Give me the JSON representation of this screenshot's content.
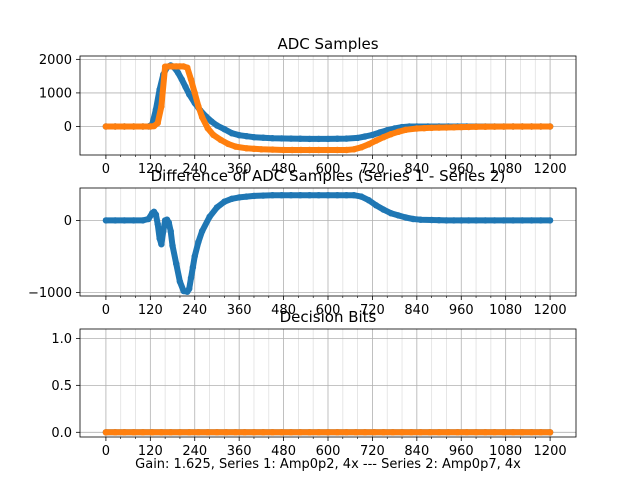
{
  "figure": {
    "xlabel": "Gain: 1.625, Series 1: Amp0p2, 4x --- Series 2: Amp0p7, 4x",
    "colors": {
      "series1": "#1f77b4",
      "series2": "#ff7f0e",
      "grid": "#b0b0b0",
      "axis": "#000000"
    }
  },
  "chart_data": [
    {
      "type": "scatter",
      "title": "ADC Samples",
      "xlim": [
        -70,
        1270
      ],
      "ylim": [
        -850,
        2100
      ],
      "x_ticks": [
        0,
        120,
        240,
        360,
        480,
        600,
        720,
        840,
        960,
        1080,
        1200
      ],
      "x_minor_step": 40,
      "y_ticks": [
        0,
        1000,
        2000
      ],
      "y_tick_labels": [
        "0",
        "1000",
        "2000"
      ],
      "grid": true,
      "series": [
        {
          "color": "#1f77b4",
          "x": [
            0,
            100,
            115,
            125,
            135,
            145,
            155,
            165,
            175,
            185,
            195,
            205,
            215,
            225,
            240,
            255,
            270,
            285,
            300,
            320,
            340,
            360,
            400,
            450,
            500,
            550,
            600,
            650,
            680,
            700,
            720,
            740,
            760,
            780,
            800,
            820,
            840,
            900,
            1000,
            1100,
            1200
          ],
          "y": [
            0,
            0,
            0,
            60,
            500,
            1100,
            1550,
            1760,
            1820,
            1750,
            1600,
            1400,
            1180,
            960,
            700,
            480,
            300,
            150,
            30,
            -80,
            -200,
            -260,
            -320,
            -350,
            -360,
            -370,
            -370,
            -360,
            -340,
            -300,
            -250,
            -180,
            -110,
            -60,
            -20,
            0,
            0,
            0,
            0,
            0,
            0
          ]
        },
        {
          "color": "#ff7f0e",
          "x": [
            0,
            100,
            120,
            130,
            140,
            150,
            160,
            170,
            180,
            190,
            200,
            210,
            220,
            230,
            240,
            250,
            260,
            275,
            290,
            310,
            330,
            350,
            380,
            420,
            480,
            550,
            600,
            650,
            670,
            690,
            710,
            730,
            750,
            770,
            790,
            810,
            840,
            880,
            920,
            960,
            1000,
            1100,
            1200
          ],
          "y": [
            0,
            0,
            0,
            10,
            100,
            600,
            1780,
            1790,
            1790,
            1790,
            1790,
            1790,
            1750,
            1400,
            1000,
            600,
            280,
            -50,
            -250,
            -400,
            -520,
            -600,
            -650,
            -680,
            -700,
            -700,
            -700,
            -700,
            -680,
            -620,
            -530,
            -420,
            -320,
            -230,
            -160,
            -100,
            -60,
            -40,
            -30,
            -20,
            -10,
            0,
            0
          ]
        }
      ]
    },
    {
      "type": "scatter",
      "title": "Difference of ADC Samples (Series 1 - Series 2)",
      "xlim": [
        -70,
        1270
      ],
      "ylim": [
        -1050,
        450
      ],
      "x_ticks": [
        0,
        120,
        240,
        360,
        480,
        600,
        720,
        840,
        960,
        1080,
        1200
      ],
      "x_minor_step": 40,
      "y_ticks": [
        -1000,
        0
      ],
      "y_tick_labels": [
        "−1000",
        "0"
      ],
      "grid": true,
      "series": [
        {
          "color": "#1f77b4",
          "x": [
            0,
            100,
            115,
            125,
            130,
            135,
            140,
            145,
            150,
            155,
            160,
            165,
            170,
            175,
            180,
            190,
            200,
            210,
            220,
            225,
            230,
            235,
            240,
            250,
            260,
            280,
            300,
            320,
            340,
            360,
            400,
            450,
            500,
            550,
            600,
            650,
            670,
            690,
            710,
            730,
            750,
            770,
            790,
            810,
            830,
            850,
            880,
            920,
            960,
            1000,
            1100,
            1200
          ],
          "y": [
            0,
            0,
            20,
            100,
            120,
            80,
            -50,
            -250,
            -330,
            -150,
            0,
            10,
            -30,
            -150,
            -350,
            -600,
            -850,
            -980,
            -990,
            -950,
            -800,
            -650,
            -500,
            -300,
            -150,
            50,
            180,
            260,
            300,
            320,
            340,
            350,
            350,
            350,
            350,
            350,
            350,
            330,
            280,
            210,
            150,
            100,
            70,
            40,
            20,
            10,
            5,
            0,
            0,
            0,
            0,
            0
          ]
        }
      ]
    },
    {
      "type": "scatter",
      "title": "Decision Bits",
      "xlim": [
        -70,
        1270
      ],
      "ylim": [
        -0.05,
        1.1
      ],
      "x_ticks": [
        0,
        120,
        240,
        360,
        480,
        600,
        720,
        840,
        960,
        1080,
        1200
      ],
      "x_minor_step": 40,
      "y_ticks": [
        0,
        0.5,
        1.0
      ],
      "y_tick_labels": [
        "0.0",
        "0.5",
        "1.0"
      ],
      "grid": true,
      "series": [
        {
          "color": "#1f77b4",
          "x": [
            0,
            1200
          ],
          "y": [
            0,
            0
          ]
        },
        {
          "color": "#ff7f0e",
          "x": [
            0,
            1200
          ],
          "y": [
            0,
            0
          ]
        }
      ]
    }
  ]
}
